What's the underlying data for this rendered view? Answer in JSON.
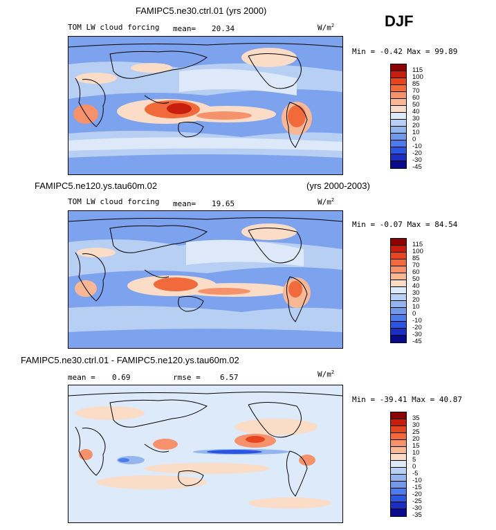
{
  "season": "DJF",
  "panels": [
    {
      "title_left": "FAMIPC5.ne30.ctrl.01 (yrs 2000)",
      "title_right": "",
      "subtitle": "TOM LW cloud forcing",
      "mean_label": "mean=",
      "mean_value": "20.34",
      "rmse_label": "",
      "rmse_value": "",
      "units": "W/m",
      "units_sup": "2",
      "minmax": "Min =  -0.42 Max =  99.89",
      "colorbar_labels": [
        "115",
        "100",
        "85",
        "70",
        "60",
        "50",
        "40",
        "30",
        "20",
        "10",
        "0",
        "-10",
        "-20",
        "-30",
        "-45"
      ]
    },
    {
      "title_left": "FAMIPC5.ne120.ys.tau60m.02",
      "title_right": "(yrs 2000-2003)",
      "subtitle": "TOM LW cloud forcing",
      "mean_label": "mean=",
      "mean_value": "19.65",
      "rmse_label": "",
      "rmse_value": "",
      "units": "W/m",
      "units_sup": "2",
      "minmax": "Min =  -0.07 Max =  84.54",
      "colorbar_labels": [
        "115",
        "100",
        "85",
        "70",
        "60",
        "50",
        "40",
        "30",
        "20",
        "10",
        "0",
        "-10",
        "-20",
        "-30",
        "-45"
      ]
    },
    {
      "title_left": "FAMIPC5.ne30.ctrl.01 - FAMIPC5.ne120.ys.tau60m.02",
      "title_right": "",
      "subtitle": "",
      "mean_label": "mean =",
      "mean_value": "0.69",
      "rmse_label": "rmse =",
      "rmse_value": "6.57",
      "units": "W/m",
      "units_sup": "2",
      "minmax": "Min = -39.41 Max =  40.87",
      "colorbar_labels": [
        "35",
        "30",
        "25",
        "20",
        "15",
        "10",
        "5",
        "0",
        "-5",
        "-10",
        "-15",
        "-20",
        "-25",
        "-30",
        "-35"
      ]
    }
  ],
  "colors": {
    "bar": [
      "#8b0000",
      "#c81e0e",
      "#e5461d",
      "#f06a3c",
      "#f5926b",
      "#f8b896",
      "#fbdcc6",
      "#ddeaf9",
      "#b8d0f4",
      "#94b6ee",
      "#7199e8",
      "#4e7bea",
      "#2c56e0",
      "#1c2fc0",
      "#0a0a8c"
    ]
  }
}
